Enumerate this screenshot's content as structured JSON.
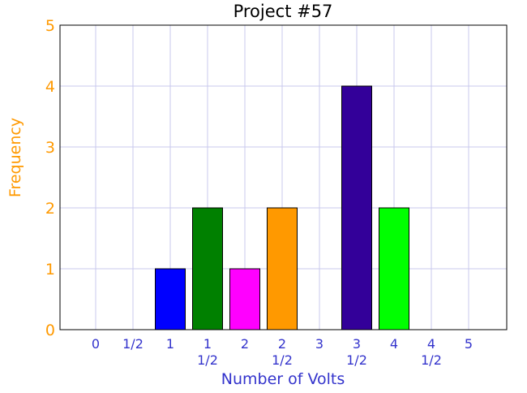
{
  "chart_data": {
    "type": "bar",
    "title": "Project #57",
    "xlabel": "Number of Volts",
    "ylabel": "Frequency",
    "categories": [
      [
        "0"
      ],
      [
        "1/2"
      ],
      [
        "1"
      ],
      [
        "1",
        "1/2"
      ],
      [
        "2"
      ],
      [
        "2",
        "1/2"
      ],
      [
        "3"
      ],
      [
        "3",
        "1/2"
      ],
      [
        "4"
      ],
      [
        "4",
        "1/2"
      ],
      [
        "5"
      ]
    ],
    "values": [
      0,
      0,
      1,
      2,
      1,
      2,
      0,
      4,
      2,
      0,
      0
    ],
    "bar_colors": [
      "#0000ff",
      "#0000ff",
      "#0000ff",
      "#008000",
      "#ff00ff",
      "#ff9900",
      "#330099",
      "#330099",
      "#00ff00",
      "#00ff00",
      "#00ff00"
    ],
    "ylim": [
      0,
      5
    ],
    "yticks": [
      0,
      1,
      2,
      3,
      4,
      5
    ],
    "grid": true,
    "colors": {
      "ytick_text": "#ff9900",
      "ylabel_text": "#ff9900",
      "xtick_text": "#3333cc",
      "xlabel_text": "#3333cc",
      "grid": "#c8c8ee"
    }
  }
}
